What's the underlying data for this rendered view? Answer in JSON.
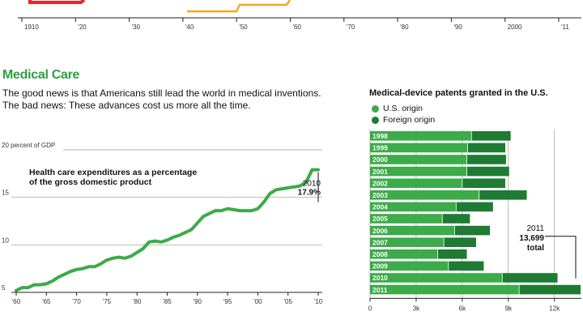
{
  "top_axis": {
    "ticks": [
      "1910",
      "'20",
      "'30",
      "'40",
      "'50",
      "'60",
      "'70",
      "'80",
      "'90",
      "2000",
      "'11"
    ]
  },
  "section": {
    "title": "Medical Care",
    "intro_line1": "The good news is that Americans still lead the world in medical inventions.",
    "intro_line2": "The bad news: These advances cost us more all the time."
  },
  "colors": {
    "light_green": "#3cab49",
    "dark_green": "#1f7a34",
    "line_green": "#3cab49",
    "orange": "#f5a623",
    "red": "#e8262b"
  },
  "chart_data": [
    {
      "type": "line",
      "title": "Health care expenditures as a percentage of the gross domestic product",
      "title_line1": "Health care expenditures as a percentage",
      "title_line2": "of the gross domestic product",
      "x": [
        1960,
        1961,
        1962,
        1963,
        1964,
        1965,
        1966,
        1967,
        1968,
        1969,
        1970,
        1971,
        1972,
        1973,
        1974,
        1975,
        1976,
        1977,
        1978,
        1979,
        1980,
        1981,
        1982,
        1983,
        1984,
        1985,
        1986,
        1987,
        1988,
        1989,
        1990,
        1991,
        1992,
        1993,
        1994,
        1995,
        1996,
        1997,
        1998,
        1999,
        2000,
        2001,
        2002,
        2003,
        2004,
        2005,
        2006,
        2007,
        2008,
        2009,
        2010
      ],
      "y": [
        5.2,
        5.5,
        5.5,
        5.8,
        5.8,
        5.9,
        6.2,
        6.6,
        6.9,
        7.2,
        7.4,
        7.5,
        7.7,
        7.7,
        8.0,
        8.4,
        8.6,
        8.7,
        8.6,
        8.8,
        9.2,
        9.6,
        10.3,
        10.4,
        10.3,
        10.5,
        10.8,
        11.0,
        11.3,
        11.6,
        12.3,
        13.0,
        13.3,
        13.6,
        13.6,
        13.8,
        13.7,
        13.6,
        13.6,
        13.6,
        13.8,
        14.5,
        15.4,
        15.8,
        15.9,
        16.0,
        16.1,
        16.2,
        16.6,
        17.9,
        17.9
      ],
      "ylim": [
        5,
        20
      ],
      "yticks": [
        5,
        10,
        15,
        20
      ],
      "ytick_labels": [
        "5",
        "10",
        "15",
        "20 percent of GDP"
      ],
      "xticks": [
        1960,
        1965,
        1970,
        1975,
        1980,
        1985,
        1990,
        1995,
        2000,
        2005,
        2010
      ],
      "xtick_labels": [
        "'60",
        "'65",
        "'70",
        "'75",
        "'80",
        "'85",
        "'90",
        "'95",
        "'00",
        "'05",
        "'10"
      ],
      "annotation_year": "2010",
      "annotation_value": "17.9%",
      "grid": true
    },
    {
      "type": "bar",
      "orientation": "horizontal",
      "stacked": true,
      "title": "Medical-device patents granted in the U.S.",
      "categories": [
        "1998",
        "1999",
        "2000",
        "2001",
        "2002",
        "2003",
        "2004",
        "2005",
        "2006",
        "2007",
        "2008",
        "2009",
        "2010",
        "2011"
      ],
      "series": [
        {
          "name": "U.S. origin",
          "values": [
            6600,
            6350,
            6300,
            6300,
            6000,
            7100,
            5600,
            4700,
            5500,
            4800,
            4400,
            5100,
            8600,
            9700
          ]
        },
        {
          "name": "Foreign origin",
          "values": [
            2550,
            2450,
            2550,
            2750,
            2800,
            3100,
            2400,
            1800,
            2300,
            2100,
            1900,
            2300,
            3600,
            3999
          ]
        }
      ],
      "xlim": [
        0,
        13699
      ],
      "xticks": [
        0,
        3000,
        6000,
        9000,
        12000
      ],
      "xtick_labels": [
        "0",
        "3k",
        "6k",
        "9k",
        "12k"
      ],
      "annotation_year": "2011",
      "annotation_value": "13,699",
      "annotation_unit": "total",
      "grid": true
    }
  ]
}
